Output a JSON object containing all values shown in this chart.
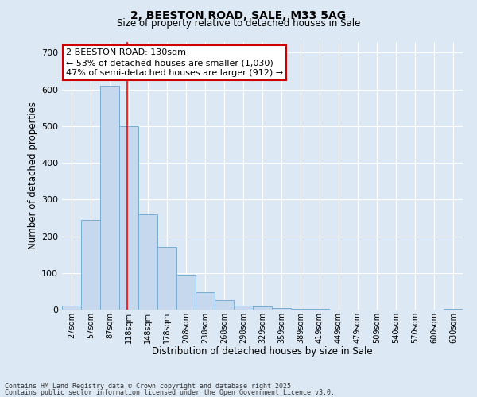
{
  "title1": "2, BEESTON ROAD, SALE, M33 5AG",
  "title2": "Size of property relative to detached houses in Sale",
  "xlabel": "Distribution of detached houses by size in Sale",
  "ylabel": "Number of detached properties",
  "bar_labels": [
    "27sqm",
    "57sqm",
    "87sqm",
    "118sqm",
    "148sqm",
    "178sqm",
    "208sqm",
    "238sqm",
    "268sqm",
    "298sqm",
    "329sqm",
    "359sqm",
    "389sqm",
    "419sqm",
    "449sqm",
    "479sqm",
    "509sqm",
    "540sqm",
    "570sqm",
    "600sqm",
    "630sqm"
  ],
  "bar_values": [
    10,
    245,
    610,
    500,
    260,
    170,
    95,
    48,
    25,
    10,
    8,
    5,
    3,
    2,
    1,
    1,
    1,
    0,
    0,
    0,
    2
  ],
  "bar_color": "#c5d8ee",
  "bar_edge_color": "#7aadd4",
  "ylim": [
    0,
    730
  ],
  "yticks": [
    0,
    100,
    200,
    300,
    400,
    500,
    600,
    700
  ],
  "red_line_x": 3.4,
  "annotation_text": "2 BEESTON ROAD: 130sqm\n← 53% of detached houses are smaller (1,030)\n47% of semi-detached houses are larger (912) →",
  "annotation_box_facecolor": "#ffffff",
  "annotation_box_edgecolor": "#cc0000",
  "footer1": "Contains HM Land Registry data © Crown copyright and database right 2025.",
  "footer2": "Contains public sector information licensed under the Open Government Licence v3.0.",
  "fig_facecolor": "#dce8f4",
  "axes_facecolor": "#dce8f4",
  "grid_color": "#ffffff"
}
